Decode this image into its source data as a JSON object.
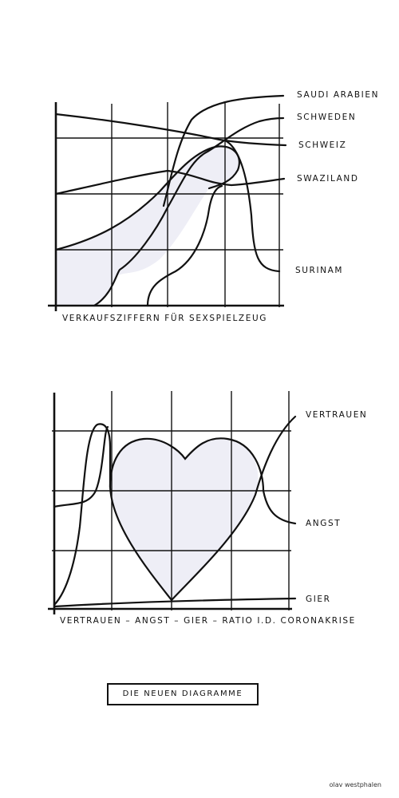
{
  "chart_data": [
    {
      "type": "line",
      "title": "VERKAUFSZIFFERN FÜR SEXSPIELZEUG",
      "xlabel": "",
      "ylabel": "",
      "grid": true,
      "series": [
        {
          "name": "SAUDI ARABIEN"
        },
        {
          "name": "SCHWEDEN"
        },
        {
          "name": "SCHWEIZ"
        },
        {
          "name": "SWAZILAND"
        },
        {
          "name": "SURINAM"
        }
      ],
      "annotation": "shaded region shaped like a sex toy"
    },
    {
      "type": "line",
      "title": "VERTRAUEN – ANGST – GIER – RATIO I.D. CORONAKRISE",
      "xlabel": "",
      "ylabel": "",
      "grid": true,
      "series": [
        {
          "name": "VERTRAUEN"
        },
        {
          "name": "ANGST"
        },
        {
          "name": "GIER"
        }
      ],
      "annotation": "shaded heart shape formed by the curves"
    }
  ],
  "footer": {
    "box_label": "DIE NEUEN DIAGRAMME",
    "signature": "olav westphalen"
  },
  "colors": {
    "ink": "#111111",
    "fill": "#eeeef6",
    "paper": "#ffffff"
  }
}
